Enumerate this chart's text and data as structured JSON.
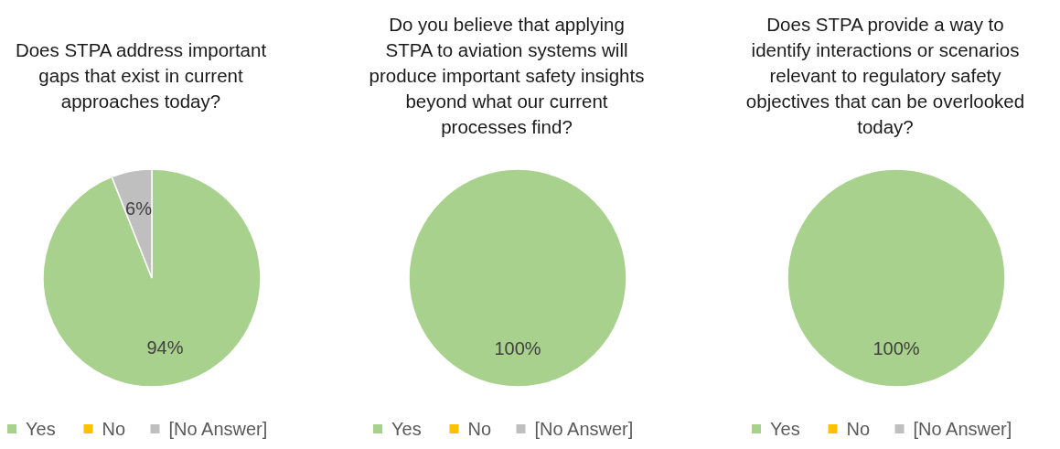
{
  "chart_data": [
    {
      "type": "pie",
      "title": "Does STPA address important\ngaps that exist in current\napproaches today?",
      "categories": [
        "Yes",
        "No",
        "[No Answer]"
      ],
      "values": [
        94,
        0,
        6
      ],
      "colors": [
        "#a9d18e",
        "#ffc000",
        "#bfbfbf"
      ],
      "value_labels": [
        "94%",
        null,
        "6%"
      ],
      "legend": "bottom"
    },
    {
      "type": "pie",
      "title": "Do you believe that applying\nSTPA to aviation systems will\nproduce important safety insights\nbeyond what our current\nprocesses find?",
      "categories": [
        "Yes",
        "No",
        "[No Answer]"
      ],
      "values": [
        100,
        0,
        0
      ],
      "colors": [
        "#a9d18e",
        "#ffc000",
        "#bfbfbf"
      ],
      "value_labels": [
        "100%",
        null,
        null
      ],
      "legend": "bottom"
    },
    {
      "type": "pie",
      "title": "Does STPA provide a way to\nidentify interactions or scenarios\nrelevant to regulatory safety\nobjectives that can be overlooked\ntoday?",
      "categories": [
        "Yes",
        "No",
        "[No Answer]"
      ],
      "values": [
        100,
        0,
        0
      ],
      "colors": [
        "#a9d18e",
        "#ffc000",
        "#bfbfbf"
      ],
      "value_labels": [
        "100%",
        null,
        null
      ],
      "legend": "bottom"
    }
  ]
}
